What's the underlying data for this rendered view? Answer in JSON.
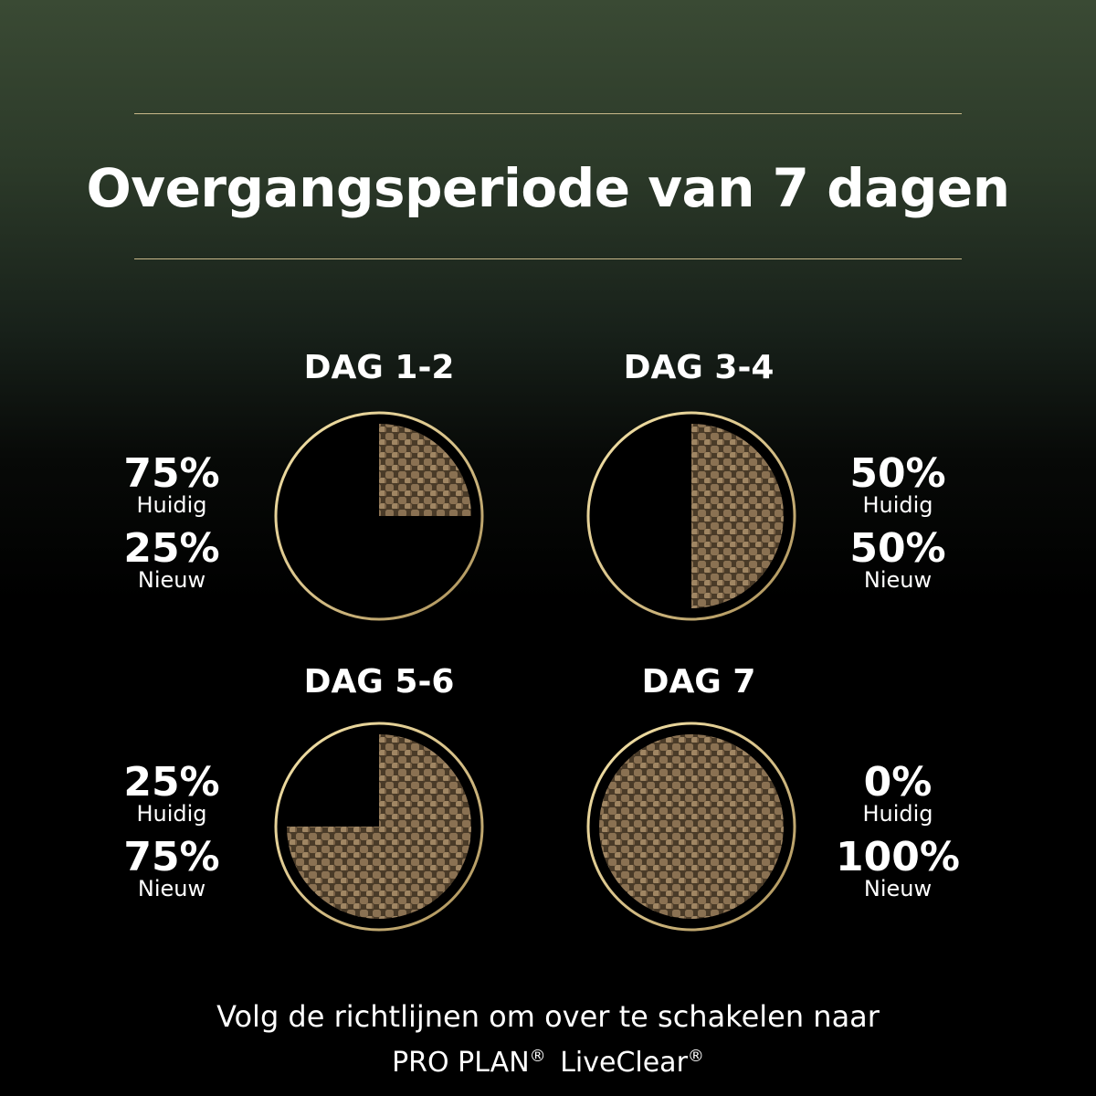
{
  "title": "Overgangsperiode van 7 dagen",
  "colors": {
    "ring": "#d8c28a",
    "kibble": "#8a7152",
    "background_top": "#3a4a34"
  },
  "stages": [
    {
      "day": "DAG 1-2",
      "current_pct": "75%",
      "current_label": "Huidig",
      "new_pct": "25%",
      "new_label": "Nieuw",
      "new_fraction": 0.25
    },
    {
      "day": "DAG 3-4",
      "current_pct": "50%",
      "current_label": "Huidig",
      "new_pct": "50%",
      "new_label": "Nieuw",
      "new_fraction": 0.5
    },
    {
      "day": "DAG 5-6",
      "current_pct": "25%",
      "current_label": "Huidig",
      "new_pct": "75%",
      "new_label": "Nieuw",
      "new_fraction": 0.75
    },
    {
      "day": "DAG 7",
      "current_pct": "0%",
      "current_label": "Huidig",
      "new_pct": "100%",
      "new_label": "Nieuw",
      "new_fraction": 1.0
    }
  ],
  "footer": {
    "line1": "Volg de richtlijnen om over te schakelen naar",
    "brand": "PRO PLAN",
    "product": "LiveClear",
    "registered": "®"
  }
}
